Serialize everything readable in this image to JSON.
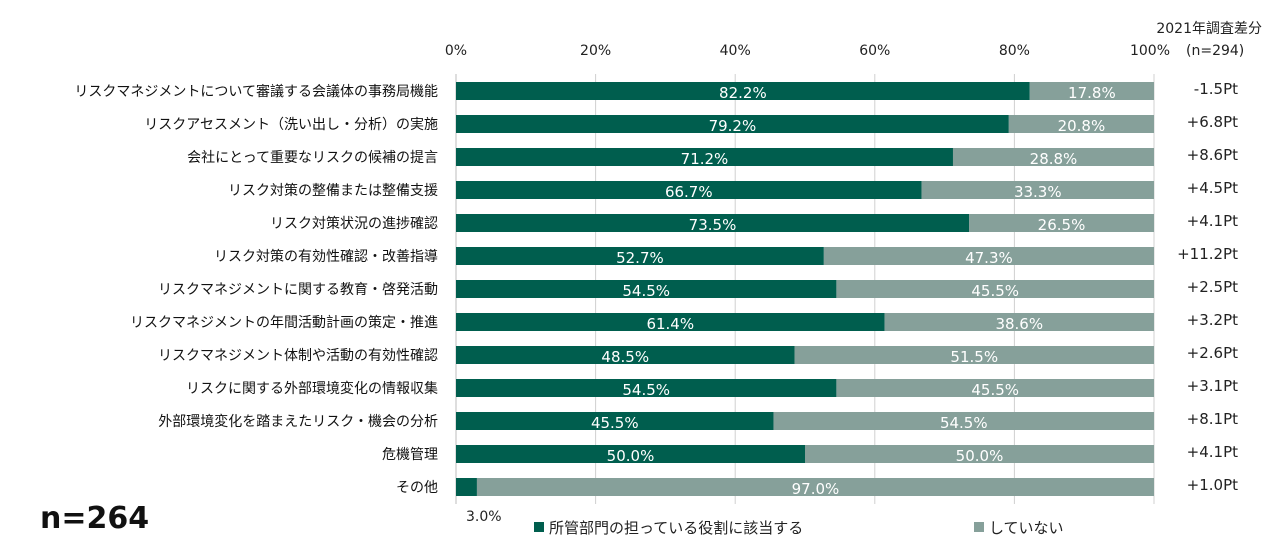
{
  "chart_data": {
    "type": "bar",
    "orientation": "horizontal",
    "stacked": true,
    "categories": [
      "リスクマネジメントについて審議する会議体の事務局機能",
      "リスクアセスメント（洗い出し・分析）の実施",
      "会社にとって重要なリスクの候補の提言",
      "リスク対策の整備または整備支援",
      "リスク対策状況の進捗確認",
      "リスク対策の有効性確認・改善指導",
      "リスクマネジメントに関する教育・啓発活動",
      "リスクマネジメントの年間活動計画の策定・推進",
      "リスクマネジメント体制や活動の有効性確認",
      "リスクに関する外部環境変化の情報収集",
      "外部環境変化を踏まえたリスク・機会の分析",
      "危機管理",
      "その他"
    ],
    "series": [
      {
        "name": "所管部門の担っている役割に該当する",
        "color": "#005e4e",
        "values": [
          82.2,
          79.2,
          71.2,
          66.7,
          73.5,
          52.7,
          54.5,
          61.4,
          48.5,
          54.5,
          45.5,
          50.0,
          3.0
        ],
        "labels": [
          "82.2%",
          "79.2%",
          "71.2%",
          "66.7%",
          "73.5%",
          "52.7%",
          "54.5%",
          "61.4%",
          "48.5%",
          "54.5%",
          "45.5%",
          "50.0%",
          "3.0%"
        ]
      },
      {
        "name": "していない",
        "color": "#86a09a",
        "values": [
          17.8,
          20.8,
          28.8,
          33.3,
          26.5,
          47.3,
          45.5,
          38.6,
          51.5,
          45.5,
          54.5,
          50.0,
          97.0
        ],
        "labels": [
          "17.8%",
          "20.8%",
          "28.8%",
          "33.3%",
          "26.5%",
          "47.3%",
          "45.5%",
          "38.6%",
          "51.5%",
          "45.5%",
          "54.5%",
          "50.0%",
          "97.0%"
        ]
      }
    ],
    "xlim": [
      0,
      100
    ],
    "x_ticks": [
      "0%",
      "20%",
      "40%",
      "60%",
      "80%",
      "100%"
    ],
    "grid": true,
    "legend_position": "bottom",
    "diff_header": "2021年調査差分",
    "n_previous": "(n=294)",
    "diffs": [
      "-1.5Pt",
      "+6.8Pt",
      "+8.6Pt",
      "+4.5Pt",
      "+4.1Pt",
      "+11.2Pt",
      "+2.5Pt",
      "+3.2Pt",
      "+2.6Pt",
      "+3.1Pt",
      "+8.1Pt",
      "+4.1Pt",
      "+1.0Pt"
    ],
    "sample_size": "n=264"
  }
}
